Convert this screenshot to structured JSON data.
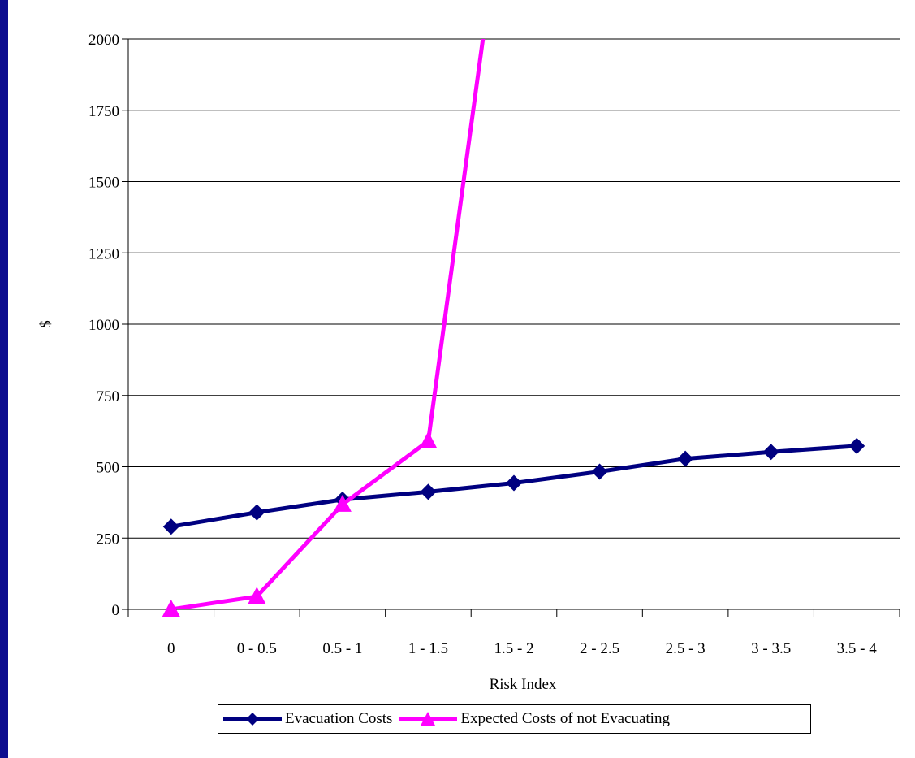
{
  "chart_data": {
    "type": "line",
    "categories": [
      "0",
      "0 - 0.5",
      "0.5 - 1",
      "1 - 1.5",
      "1.5 - 2",
      "2 - 2.5",
      "2.5 - 3",
      "3 - 3.5",
      "3.5 - 4"
    ],
    "series": [
      {
        "name": "Evacuation Costs",
        "color": "#000080",
        "marker": "diamond",
        "values": [
          290,
          340,
          385,
          412,
          443,
          483,
          528,
          552,
          573
        ]
      },
      {
        "name": "Expected Costs of not Evacuating",
        "color": "#ff00ff",
        "marker": "triangle",
        "values": [
          0,
          45,
          368,
          590,
          2800,
          null,
          null,
          null,
          null
        ]
      }
    ],
    "title": "",
    "xlabel": "Risk Index",
    "ylabel": "$",
    "ylim": [
      0,
      2000
    ],
    "yticks": [
      "0",
      "250",
      "500",
      "750",
      "1000",
      "1250",
      "1500",
      "1750",
      "2000"
    ],
    "grid": "horizontal",
    "legend": "bottom"
  }
}
